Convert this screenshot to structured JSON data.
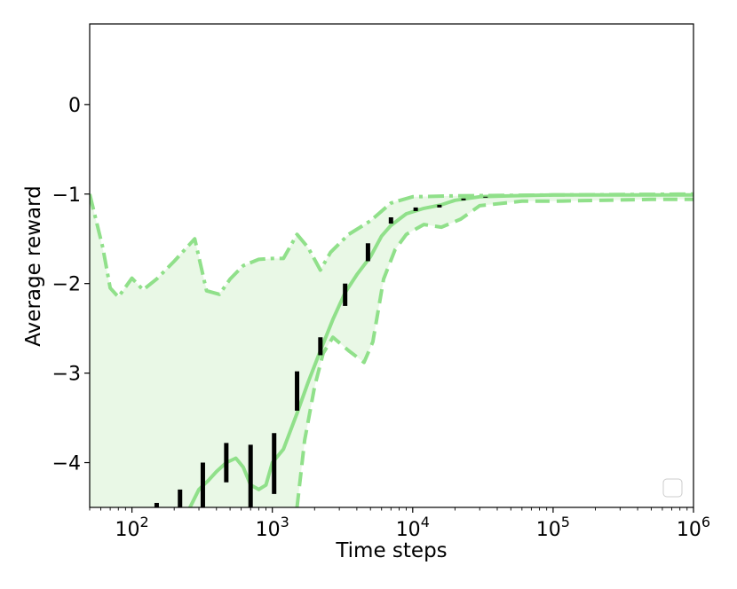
{
  "chart_data": {
    "type": "line",
    "title": "",
    "xlabel": "Time steps",
    "ylabel": "Average reward",
    "xscale": "log",
    "xlim": [
      50,
      1000000
    ],
    "ylim": [
      -4.5,
      0.9
    ],
    "grid": false,
    "legend": "bottom-right, empty",
    "color": "#90e08a",
    "fill_color": "#e9f8e6",
    "errorbar_color": "#000000",
    "x_ticks": [
      {
        "value": 100,
        "base": "10",
        "exp": "2"
      },
      {
        "value": 1000,
        "base": "10",
        "exp": "3"
      },
      {
        "value": 10000,
        "base": "10",
        "exp": "4"
      },
      {
        "value": 100000,
        "base": "10",
        "exp": "5"
      },
      {
        "value": 1000000,
        "base": "10",
        "exp": "6"
      }
    ],
    "y_ticks": [
      {
        "value": 0,
        "label": "0"
      },
      {
        "value": -1,
        "label": "−1"
      },
      {
        "value": -2,
        "label": "−2"
      },
      {
        "value": -3,
        "label": "−3"
      },
      {
        "value": -4,
        "label": "−4"
      }
    ],
    "series": [
      {
        "style": "solid",
        "points": [
          [
            100,
            -4.75
          ],
          [
            150,
            -4.75
          ],
          [
            200,
            -4.6
          ],
          [
            250,
            -4.55
          ],
          [
            300,
            -4.3
          ],
          [
            350,
            -4.2
          ],
          [
            400,
            -4.1
          ],
          [
            470,
            -4.0
          ],
          [
            550,
            -3.95
          ],
          [
            620,
            -4.05
          ],
          [
            700,
            -4.25
          ],
          [
            800,
            -4.3
          ],
          [
            900,
            -4.25
          ],
          [
            1000,
            -4.0
          ],
          [
            1200,
            -3.85
          ],
          [
            1500,
            -3.45
          ],
          [
            1800,
            -3.1
          ],
          [
            2200,
            -2.75
          ],
          [
            2700,
            -2.4
          ],
          [
            3300,
            -2.1
          ],
          [
            4000,
            -1.9
          ],
          [
            5000,
            -1.7
          ],
          [
            6000,
            -1.47
          ],
          [
            7000,
            -1.35
          ],
          [
            9000,
            -1.22
          ],
          [
            12000,
            -1.16
          ],
          [
            16000,
            -1.12
          ],
          [
            20000,
            -1.07
          ],
          [
            30000,
            -1.03
          ],
          [
            50000,
            -1.02
          ],
          [
            100000,
            -1.01
          ],
          [
            1000000,
            -1.01
          ]
        ]
      },
      {
        "style": "dash-dot",
        "points": [
          [
            50,
            -1.0
          ],
          [
            62,
            -1.6
          ],
          [
            70,
            -2.05
          ],
          [
            80,
            -2.15
          ],
          [
            100,
            -1.94
          ],
          [
            120,
            -2.07
          ],
          [
            150,
            -1.95
          ],
          [
            200,
            -1.75
          ],
          [
            280,
            -1.5
          ],
          [
            340,
            -2.08
          ],
          [
            420,
            -2.12
          ],
          [
            500,
            -1.95
          ],
          [
            620,
            -1.8
          ],
          [
            800,
            -1.73
          ],
          [
            1000,
            -1.72
          ],
          [
            1200,
            -1.72
          ],
          [
            1500,
            -1.45
          ],
          [
            1800,
            -1.6
          ],
          [
            2200,
            -1.85
          ],
          [
            2600,
            -1.65
          ],
          [
            3500,
            -1.45
          ],
          [
            5000,
            -1.3
          ],
          [
            7000,
            -1.1
          ],
          [
            10000,
            -1.03
          ],
          [
            20000,
            -1.02
          ],
          [
            100000,
            -1.01
          ],
          [
            1000000,
            -1.0
          ]
        ]
      },
      {
        "style": "dashed",
        "points": [
          [
            1500,
            -4.5
          ],
          [
            1700,
            -3.75
          ],
          [
            2000,
            -3.15
          ],
          [
            2300,
            -2.78
          ],
          [
            2700,
            -2.6
          ],
          [
            3500,
            -2.75
          ],
          [
            4500,
            -2.88
          ],
          [
            5200,
            -2.65
          ],
          [
            6200,
            -1.95
          ],
          [
            7500,
            -1.62
          ],
          [
            9000,
            -1.45
          ],
          [
            12000,
            -1.34
          ],
          [
            16000,
            -1.37
          ],
          [
            22000,
            -1.28
          ],
          [
            30000,
            -1.13
          ],
          [
            60000,
            -1.08
          ],
          [
            100000,
            -1.08
          ],
          [
            500000,
            -1.06
          ],
          [
            1000000,
            -1.06
          ]
        ]
      }
    ],
    "band": {
      "upper_series": 1,
      "lower_series": 2
    },
    "error_bars": [
      {
        "x": 150,
        "low": -4.6,
        "high": -4.45
      },
      {
        "x": 220,
        "low": -4.8,
        "high": -4.3
      },
      {
        "x": 320,
        "low": -4.7,
        "high": -4.0
      },
      {
        "x": 470,
        "low": -4.22,
        "high": -3.78
      },
      {
        "x": 700,
        "low": -4.75,
        "high": -3.8
      },
      {
        "x": 1030,
        "low": -4.35,
        "high": -3.67
      },
      {
        "x": 1500,
        "low": -3.42,
        "high": -2.98
      },
      {
        "x": 2200,
        "low": -2.8,
        "high": -2.6
      },
      {
        "x": 3300,
        "low": -2.25,
        "high": -2.0
      },
      {
        "x": 4800,
        "low": -1.75,
        "high": -1.55
      },
      {
        "x": 7000,
        "low": -1.33,
        "high": -1.26
      },
      {
        "x": 10500,
        "low": -1.19,
        "high": -1.15
      },
      {
        "x": 15500,
        "low": -1.15,
        "high": -1.12
      },
      {
        "x": 23000,
        "low": -1.07,
        "high": -1.05
      },
      {
        "x": 33000,
        "low": -1.04,
        "high": -1.03
      }
    ]
  }
}
